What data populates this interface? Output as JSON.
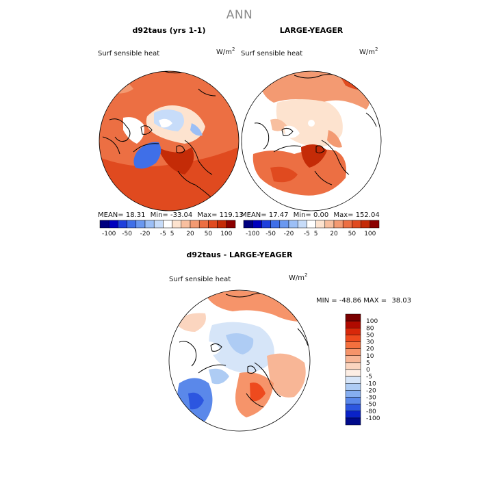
{
  "title": "ANN",
  "panels": [
    {
      "id": "model",
      "title": "d92taus (yrs 1-1)",
      "variable": "Surf sensible heat",
      "units_base": "W/m",
      "units_exp": "2",
      "stats": {
        "mean_label": "MEAN=",
        "mean": "18.31",
        "min_label": "Min=",
        "min": "-33.04",
        "max_label": "Max=",
        "max": "119.13"
      }
    },
    {
      "id": "obs",
      "title": "LARGE-YEAGER",
      "variable": "Surf sensible heat",
      "units_base": "W/m",
      "units_exp": "2",
      "stats": {
        "mean_label": "MEAN=",
        "mean": "17.47",
        "min_label": "Min=",
        "min": "0.00",
        "max_label": "Max=",
        "max": "152.04"
      }
    }
  ],
  "colorbar_h": {
    "colors": [
      "#00007f",
      "#0000bd",
      "#1e3fdc",
      "#3f6fe8",
      "#6a98f0",
      "#9cbff6",
      "#c7dcf9",
      "#ffffff",
      "#fde3cf",
      "#f8bf9f",
      "#f39a72",
      "#ec6f43",
      "#e04a1f",
      "#c42b07",
      "#8b0000"
    ],
    "ticks": [
      "-100",
      "-50",
      "-20",
      "-5",
      "5",
      "20",
      "50",
      "100"
    ]
  },
  "diff_panel": {
    "title": "d92taus - LARGE-YEAGER",
    "variable": "Surf sensible heat",
    "units_base": "W/m",
    "units_exp": "2",
    "min_label": "MIN =",
    "min": "-48.86",
    "max_label": "MAX =",
    "max": "38.03",
    "legend": {
      "levels": [
        "100",
        "80",
        "50",
        "30",
        "20",
        "10",
        "5",
        "0",
        "-5",
        "-10",
        "-20",
        "-30",
        "-50",
        "-80",
        "-100"
      ],
      "colors": [
        "#7a0000",
        "#b00a00",
        "#d8280a",
        "#ee4a1e",
        "#f4703e",
        "#f6946a",
        "#f8b696",
        "#fbd5bf",
        "#fdeee4",
        "#d6e5f8",
        "#aeccf4",
        "#86aef0",
        "#5a88ea",
        "#2c56e0",
        "#0a22c8",
        "#000a8a"
      ]
    }
  },
  "map_colors": {
    "land": "#ffffff",
    "coast": "#000000",
    "deep_red": "#c42b07",
    "red": "#e04a1f",
    "orange": "#ec6f43",
    "salmon": "#f39a72",
    "light_salmon": "#f8bf9f",
    "peach": "#fde3cf",
    "pale_blue": "#c7dcf9",
    "light_blue": "#9cbff6",
    "blue": "#3f6fe8"
  }
}
